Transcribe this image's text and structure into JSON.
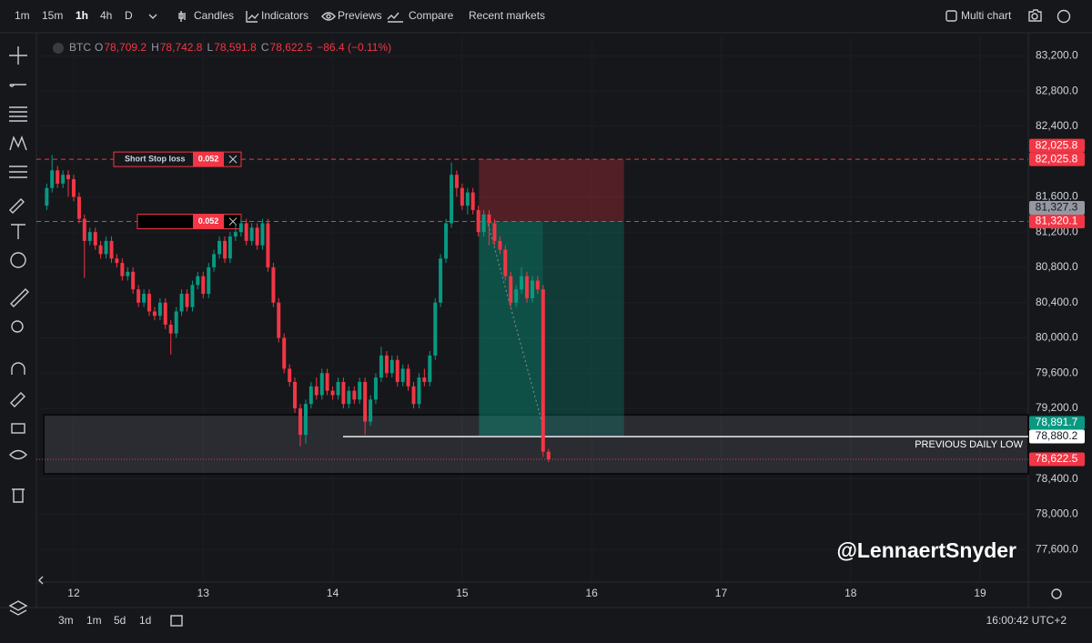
{
  "toolbar": {
    "intervals": [
      "1m",
      "15m",
      "1h",
      "4h",
      "D"
    ],
    "items": [
      "Candles",
      "Indicators",
      "Previews",
      "Compare",
      "Recent markets"
    ],
    "multi_chart": "Multi chart"
  },
  "legend": {
    "symbol": "BTC",
    "ohlc": [
      {
        "label": "O",
        "value": "78,709.2"
      },
      {
        "label": "H",
        "value": "78,742.8"
      },
      {
        "label": "L",
        "value": "78,591.8"
      },
      {
        "label": "C",
        "value": "78,622.5"
      }
    ],
    "change": "−86.4 (−0.11%)"
  },
  "chart_data": {
    "type": "candlestick",
    "up_color": "#089981",
    "down_color": "#f23645",
    "x": [
      11.792,
      11.833,
      11.875,
      11.917,
      11.958,
      12,
      12.042,
      12.083,
      12.125,
      12.167,
      12.208,
      12.25,
      12.292,
      12.333,
      12.375,
      12.417,
      12.458,
      12.5,
      12.542,
      12.583,
      12.625,
      12.667,
      12.708,
      12.75,
      12.792,
      12.833,
      12.875,
      12.917,
      12.958,
      13,
      13.042,
      13.083,
      13.125,
      13.167,
      13.208,
      13.25,
      13.292,
      13.333,
      13.375,
      13.417,
      13.458,
      13.5,
      13.542,
      13.583,
      13.625,
      13.667,
      13.708,
      13.75,
      13.792,
      13.833,
      13.875,
      13.917,
      13.958,
      14,
      14.042,
      14.083,
      14.125,
      14.167,
      14.208,
      14.25,
      14.292,
      14.333,
      14.375,
      14.417,
      14.458,
      14.5,
      14.542,
      14.583,
      14.625,
      14.667,
      14.708,
      14.75,
      14.792,
      14.833,
      14.875,
      14.917,
      14.958,
      15,
      15.042,
      15.083,
      15.125,
      15.167,
      15.208,
      15.25,
      15.292,
      15.333,
      15.375,
      15.417,
      15.458,
      15.5,
      15.542,
      15.583,
      15.625,
      15.667
    ],
    "open": [
      81500,
      81700,
      81900,
      81750,
      81850,
      81800,
      81600,
      81350,
      81100,
      81200,
      81050,
      80950,
      81100,
      80900,
      80850,
      80700,
      80750,
      80550,
      80400,
      80500,
      80300,
      80250,
      80400,
      80150,
      80050,
      80300,
      80500,
      80350,
      80600,
      80700,
      80500,
      80800,
      80950,
      81100,
      80900,
      81150,
      81200,
      81300,
      81100,
      81250,
      81050,
      81300,
      80800,
      80400,
      80000,
      79650,
      79500,
      79200,
      78900,
      79250,
      79450,
      79350,
      79600,
      79400,
      79350,
      79500,
      79250,
      79400,
      79300,
      79500,
      79050,
      79300,
      79550,
      79800,
      79600,
      79750,
      79500,
      79650,
      79450,
      79250,
      79550,
      79500,
      79800,
      80400,
      80900,
      81300,
      81850,
      81700,
      81500,
      81650,
      81450,
      81200,
      81400,
      81300,
      81100,
      81000,
      80700,
      80400,
      80550,
      80700,
      80450,
      80650,
      80550,
      78709.2
    ],
    "high": [
      81750,
      82075,
      81950,
      81900,
      81900,
      81850,
      81650,
      81400,
      81250,
      81250,
      81100,
      81150,
      81150,
      80950,
      80900,
      80800,
      80800,
      80600,
      80550,
      80550,
      80350,
      80450,
      80450,
      80200,
      80350,
      80550,
      80550,
      80650,
      80750,
      80750,
      80850,
      81000,
      81150,
      81150,
      81200,
      81300,
      81350,
      81350,
      81300,
      81300,
      81350,
      81350,
      80850,
      80450,
      80050,
      79700,
      79550,
      79250,
      79300,
      79500,
      79550,
      79650,
      79650,
      79450,
      79550,
      79550,
      79450,
      79450,
      79550,
      79550,
      79350,
      79600,
      79900,
      79850,
      79800,
      79800,
      79700,
      79700,
      79500,
      79600,
      79650,
      79850,
      80450,
      80950,
      81350,
      81990,
      81900,
      81750,
      81700,
      81700,
      81500,
      81450,
      81450,
      81350,
      81150,
      81050,
      80750,
      80600,
      80800,
      80750,
      80700,
      80700,
      80600,
      78742.8
    ],
    "low": [
      81450,
      81650,
      81700,
      81700,
      81600,
      81550,
      81300,
      80680,
      81050,
      81000,
      80900,
      80900,
      80850,
      80800,
      80650,
      80650,
      80500,
      80350,
      80350,
      80250,
      80200,
      80200,
      80100,
      79810,
      80000,
      80250,
      80300,
      80300,
      80550,
      80450,
      80450,
      80750,
      80900,
      80850,
      80850,
      81100,
      81150,
      81050,
      81050,
      81000,
      81000,
      80750,
      80350,
      79950,
      79600,
      79450,
      79150,
      78770,
      78800,
      79200,
      79300,
      79300,
      79350,
      79300,
      79300,
      79200,
      79200,
      79250,
      79250,
      78900,
      79000,
      79250,
      79500,
      79550,
      79550,
      79450,
      79450,
      79400,
      79200,
      79200,
      79450,
      79450,
      79750,
      80350,
      80850,
      81250,
      81600,
      81450,
      81400,
      81400,
      81150,
      81150,
      81050,
      81050,
      80950,
      80650,
      80350,
      80350,
      80500,
      80400,
      80400,
      80500,
      78650,
      78591.8
    ],
    "close": [
      81700,
      81900,
      81750,
      81850,
      81800,
      81600,
      81350,
      81100,
      81200,
      81050,
      80950,
      81100,
      80900,
      80850,
      80700,
      80750,
      80550,
      80400,
      80500,
      80300,
      80250,
      80400,
      80150,
      80050,
      80300,
      80500,
      80350,
      80600,
      80700,
      80500,
      80800,
      80950,
      81100,
      80900,
      81150,
      81200,
      81300,
      81100,
      81250,
      81050,
      81300,
      80800,
      80400,
      80000,
      79650,
      79500,
      79200,
      78900,
      79250,
      79450,
      79350,
      79600,
      79400,
      79350,
      79500,
      79250,
      79400,
      79300,
      79500,
      79050,
      79300,
      79550,
      79800,
      79600,
      79750,
      79500,
      79650,
      79450,
      79250,
      79550,
      79500,
      79800,
      80400,
      80900,
      81300,
      81850,
      81700,
      81500,
      81650,
      81450,
      81200,
      81400,
      81300,
      81100,
      81000,
      80700,
      80400,
      80550,
      80700,
      80450,
      80650,
      80550,
      78709.2,
      78622.5
    ],
    "xlim": [
      11.712,
      19.372
    ],
    "xticks": [
      12,
      13,
      14,
      15,
      16,
      17,
      18,
      19
    ],
    "ylim": [
      77230,
      83420
    ],
    "yticks": [
      {
        "value": 77600,
        "label": "77,600.0"
      },
      {
        "value": 78000,
        "label": "78,000.0"
      },
      {
        "value": 78400,
        "label": "78,400.0"
      },
      {
        "value": 79200,
        "label": "79,200.0"
      },
      {
        "value": 79600,
        "label": "79,600.0"
      },
      {
        "value": 80000,
        "label": "80,000.0"
      },
      {
        "value": 80400,
        "label": "80,400.0"
      },
      {
        "value": 80800,
        "label": "80,800.0"
      },
      {
        "value": 81200,
        "label": "81,200.0"
      },
      {
        "value": 81600,
        "label": "81,600.0"
      },
      {
        "value": 82400,
        "label": "82,400.0"
      },
      {
        "value": 82800,
        "label": "82,800.0"
      },
      {
        "value": 83200,
        "label": "83,200.0"
      }
    ],
    "zone": {
      "from": 78457,
      "to": 79127
    },
    "position": {
      "x_from": 15.13,
      "x_to": 16.25,
      "stop": 82025.8,
      "entry": 81320.1,
      "target": 78891.7
    },
    "orders": [
      {
        "label": "Short Stop loss",
        "quantity": "0.052",
        "price": 82025.8
      },
      {
        "quantity": "0.052",
        "price": 81320.1
      }
    ],
    "level": {
      "label": "PREVIOUS DAILY LOW",
      "value": 78880.2,
      "x_from": 14.08
    },
    "last_price": 78622.5,
    "price_tags": [
      {
        "value": 82025.8,
        "label": "82,025.8",
        "color": "#f23645",
        "text_color": "#ffffff"
      },
      {
        "value": 82025.8,
        "label": "82,025.8",
        "color": "#f23645",
        "text_color": "#ffffff"
      },
      {
        "value": 81327.3,
        "label": "81,327.3",
        "color": "#9598a1",
        "text_color": "#131722"
      },
      {
        "value": 81320.1,
        "label": "81,320.1",
        "color": "#f23645",
        "text_color": "#ffffff"
      },
      {
        "value": 78891.7,
        "label": "78,891.7",
        "color": "#089981",
        "text_color": "#ffffff"
      },
      {
        "value": 78880.2,
        "label": "78,880.2",
        "color": "#ffffff",
        "text_color": "#131722"
      },
      {
        "value": 78622.5,
        "label": "78,622.5",
        "color": "#f23645",
        "text_color": "#ffffff"
      }
    ]
  },
  "watermark": "@LennaertSnyder",
  "bottom": {
    "ranges": [
      "3m",
      "1m",
      "5d",
      "1d"
    ],
    "clock": "16:00:42 UTC+2"
  }
}
